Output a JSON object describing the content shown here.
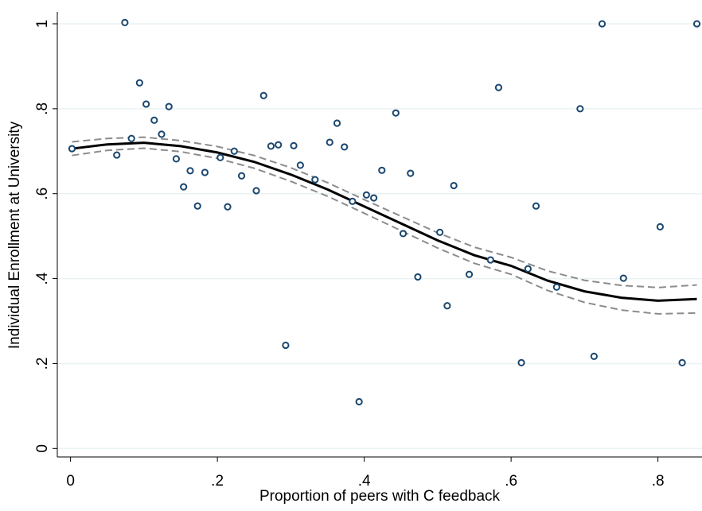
{
  "chart_data": {
    "type": "scatter",
    "xlabel": "Proportion of peers with C feedback",
    "ylabel": "Individual Enrollment at University",
    "xlim": [
      -0.018,
      0.86
    ],
    "ylim": [
      -0.02,
      1.028
    ],
    "xticks": [
      0,
      {
        "value": 0.2,
        "label": ".2"
      },
      {
        "value": 0.4,
        "label": ".4"
      },
      {
        "value": 0.6,
        "label": ".6"
      },
      {
        "value": 0.8,
        "label": ".8"
      }
    ],
    "yticks": [
      0,
      {
        "value": 0.2,
        "label": ".2"
      },
      {
        "value": 0.4,
        "label": ".4"
      },
      {
        "value": 0.6,
        "label": ".6"
      },
      {
        "value": 0.8,
        "label": ".8"
      },
      1
    ],
    "grid": true,
    "color": "#1a476f",
    "x": [
      0.002,
      0.063,
      0.074,
      0.083,
      0.094,
      0.103,
      0.114,
      0.124,
      0.134,
      0.144,
      0.154,
      0.163,
      0.173,
      0.183,
      0.204,
      0.214,
      0.223,
      0.233,
      0.253,
      0.263,
      0.273,
      0.283,
      0.293,
      0.304,
      0.313,
      0.333,
      0.353,
      0.363,
      0.373,
      0.384,
      0.393,
      0.403,
      0.413,
      0.424,
      0.443,
      0.453,
      0.463,
      0.473,
      0.503,
      0.513,
      0.522,
      0.543,
      0.583,
      0.572,
      0.614,
      0.623,
      0.634,
      0.662,
      0.694,
      0.713,
      0.724,
      0.753,
      0.803,
      0.833,
      0.853
    ],
    "values": [
      0.706,
      0.691,
      1.003,
      0.73,
      0.861,
      0.811,
      0.773,
      0.74,
      0.805,
      0.682,
      0.616,
      0.654,
      0.571,
      0.65,
      0.685,
      0.569,
      0.7,
      0.642,
      0.607,
      0.831,
      0.712,
      0.715,
      0.243,
      0.713,
      0.667,
      0.633,
      0.721,
      0.766,
      0.71,
      0.582,
      0.11,
      0.597,
      0.59,
      0.655,
      0.79,
      0.506,
      0.648,
      0.404,
      0.509,
      0.336,
      0.619,
      0.41,
      0.85,
      0.444,
      0.202,
      0.423,
      0.571,
      0.38,
      0.8,
      0.217,
      1.0,
      0.401,
      0.522,
      0.202,
      1.0
    ],
    "fit": {
      "color": "#000000",
      "ci_color": "#8c8c8c",
      "x": [
        0.002,
        0.05,
        0.1,
        0.15,
        0.2,
        0.25,
        0.3,
        0.35,
        0.4,
        0.45,
        0.5,
        0.55,
        0.6,
        0.65,
        0.7,
        0.75,
        0.8,
        0.853
      ],
      "values": [
        0.706,
        0.716,
        0.72,
        0.712,
        0.697,
        0.675,
        0.645,
        0.61,
        0.57,
        0.53,
        0.49,
        0.455,
        0.43,
        0.395,
        0.37,
        0.355,
        0.348,
        0.352
      ],
      "upper": [
        0.722,
        0.73,
        0.733,
        0.725,
        0.711,
        0.69,
        0.661,
        0.626,
        0.586,
        0.547,
        0.508,
        0.474,
        0.45,
        0.418,
        0.396,
        0.384,
        0.379,
        0.385
      ],
      "lower": [
        0.69,
        0.702,
        0.707,
        0.699,
        0.683,
        0.66,
        0.629,
        0.594,
        0.554,
        0.513,
        0.472,
        0.436,
        0.41,
        0.372,
        0.344,
        0.326,
        0.317,
        0.319
      ]
    }
  }
}
